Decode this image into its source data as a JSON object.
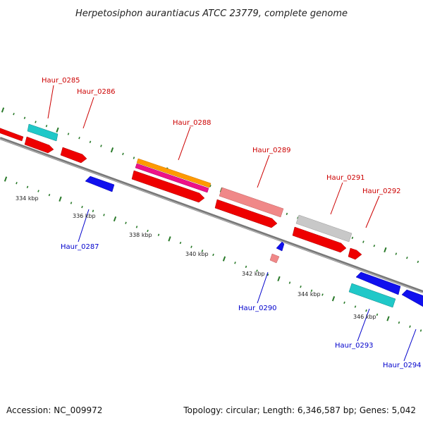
{
  "title": "Herpetosiphon aurantiacus ATCC 23779, complete genome",
  "footer": {
    "accession": "Accession: NC_009972",
    "summary": "Topology: circular; Length: 6,346,587 bp; Genes: 5,042"
  },
  "colors": {
    "forward_label": "#cc0000",
    "reverse_label": "#0000cc",
    "backbone": "#888888",
    "tick": "#2a7a2a"
  },
  "scale_labels": [
    "334 kbp",
    "336 kbp",
    "338 kbp",
    "340 kbp",
    "342 kbp",
    "344 kbp",
    "346 kbp"
  ],
  "gene_labels": [
    {
      "text": "Haur_0285",
      "strand": "forward"
    },
    {
      "text": "Haur_0286",
      "strand": "forward"
    },
    {
      "text": "Haur_0288",
      "strand": "forward"
    },
    {
      "text": "Haur_0289",
      "strand": "forward"
    },
    {
      "text": "Haur_0291",
      "strand": "forward"
    },
    {
      "text": "Haur_0292",
      "strand": "forward"
    },
    {
      "text": "Haur_0287",
      "strand": "reverse"
    },
    {
      "text": "Haur_0290",
      "strand": "reverse"
    },
    {
      "text": "Haur_0293",
      "strand": "reverse"
    },
    {
      "text": "Haur_0294",
      "strand": "reverse"
    }
  ]
}
